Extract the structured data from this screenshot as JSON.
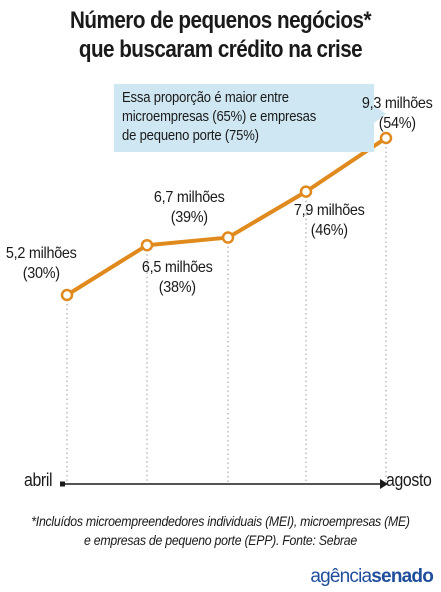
{
  "title": {
    "line1": "Número de pequenos negócios*",
    "line2": "que buscaram crédito na crise"
  },
  "callout": {
    "line1": "Essa proporção é maior entre",
    "line2": "microempresas (65%) e empresas",
    "line3": "de pequeno porte (75%)"
  },
  "chart_data": {
    "type": "line",
    "title": "Número de pequenos negócios* que buscaram crédito na crise",
    "x": [
      1,
      2,
      3,
      4,
      5
    ],
    "x_start_label": "abril",
    "x_end_label": "agosto",
    "series": [
      {
        "values": [
          5.2,
          6.5,
          6.7,
          7.9,
          9.3
        ],
        "value_labels": [
          "5,2 milhões",
          "6,5 milhões",
          "6,7 milhões",
          "7,9 milhões",
          "9,3 milhões"
        ],
        "percent_labels": [
          "(30%)",
          "(38%)",
          "(39%)",
          "(46%)",
          "(54%)"
        ]
      }
    ],
    "ylim": [
      4,
      10
    ],
    "grid": false,
    "legend": "none",
    "line_color": "#e08a1e"
  },
  "footnote": {
    "line1": "*Incluídos microempreendedores individuais (MEI), microempresas (ME)",
    "line2": "e empresas de pequeno porte (EPP). Fonte: Sebrae"
  },
  "brand": {
    "part1": "agência",
    "part2": "senado"
  }
}
